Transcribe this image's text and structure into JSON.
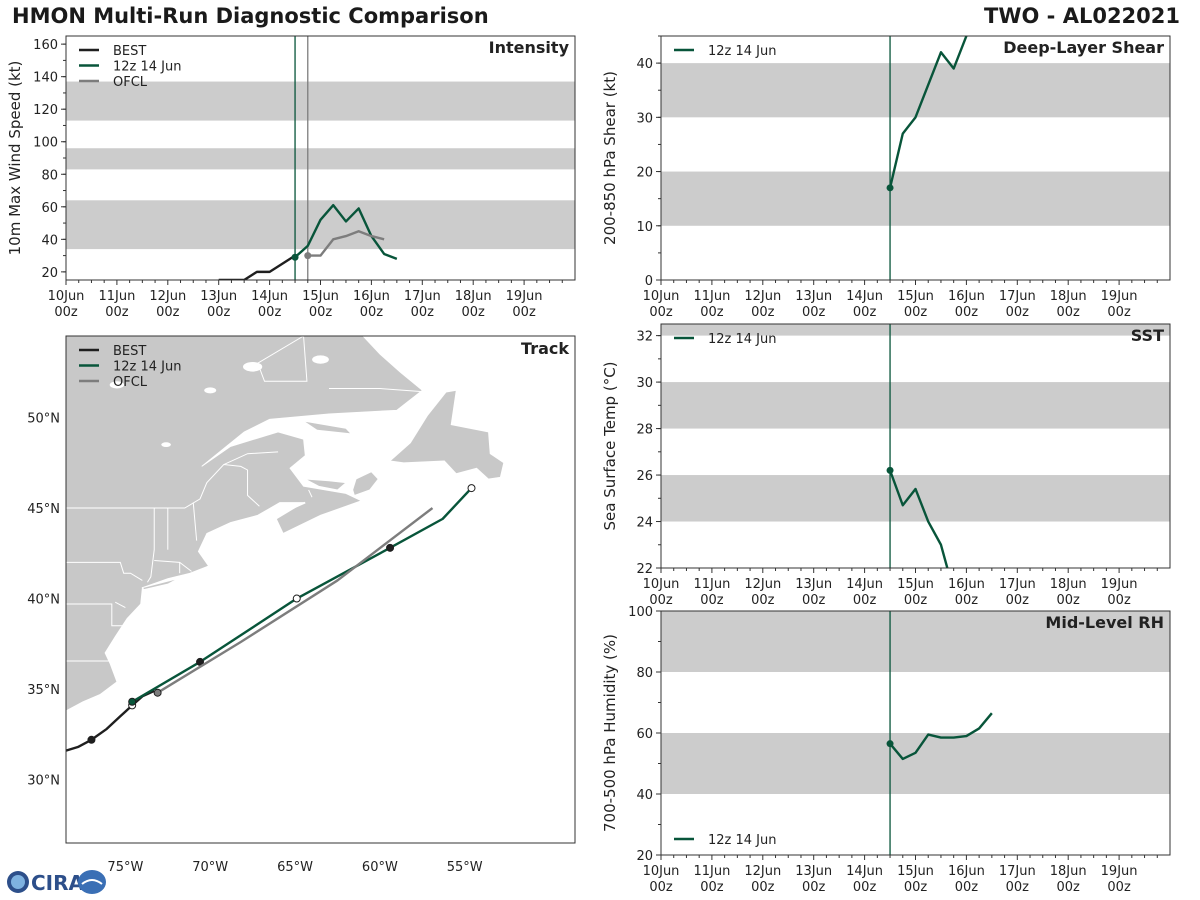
{
  "header": {
    "title": "HMON Multi-Run Diagnostic Comparison",
    "storm_id": "TWO - AL022021",
    "logo_text": "CIRA"
  },
  "colors": {
    "best": "#1f1f1f",
    "run": "#08553a",
    "ofcl": "#7d7d7d",
    "band": "#cccccc",
    "land": "#c8c8c8"
  },
  "chart_data": [
    {
      "id": "intensity",
      "type": "line",
      "title": "Intensity",
      "ylabel": "10m Max Wind Speed (kt)",
      "xlim": [
        0,
        10
      ],
      "ylim": [
        15,
        165
      ],
      "x_ticks": [
        "10Jun\n00z",
        "11Jun\n00z",
        "12Jun\n00z",
        "13Jun\n00z",
        "14Jun\n00z",
        "15Jun\n00z",
        "16Jun\n00z",
        "17Jun\n00z",
        "18Jun\n00z",
        "19Jun\n00z"
      ],
      "y_ticks": [
        20,
        40,
        60,
        80,
        100,
        120,
        140,
        160
      ],
      "bands": [
        [
          34,
          64
        ],
        [
          83,
          96
        ],
        [
          113,
          137
        ]
      ],
      "vlines": [
        {
          "x": 4.5,
          "series": "run"
        },
        {
          "x": 4.75,
          "series": "ofcl"
        }
      ],
      "legend": [
        "BEST",
        "12z 14 Jun",
        "OFCL"
      ],
      "series": [
        {
          "name": "BEST",
          "key": "best",
          "x": [
            3.0,
            3.25,
            3.5,
            3.75,
            4.0,
            4.25,
            4.5
          ],
          "y": [
            15,
            15,
            15,
            20,
            20,
            25,
            30
          ],
          "marker_at": null
        },
        {
          "name": "12z 14 Jun",
          "key": "run",
          "x": [
            4.5,
            4.75,
            5.0,
            5.25,
            5.5,
            5.75,
            6.0,
            6.25,
            6.5
          ],
          "y": [
            29,
            36,
            52,
            61,
            51,
            59,
            42,
            31,
            28
          ],
          "marker_at": 0
        },
        {
          "name": "OFCL",
          "key": "ofcl",
          "x": [
            4.75,
            5.0,
            5.25,
            5.5,
            5.75,
            6.0,
            6.25
          ],
          "y": [
            30,
            30,
            40,
            42,
            45,
            42,
            40
          ],
          "marker_at": 0
        }
      ]
    },
    {
      "id": "shear",
      "type": "line",
      "title": "Deep-Layer Shear",
      "ylabel": "200-850 hPa Shear (kt)",
      "xlim": [
        0,
        10
      ],
      "ylim": [
        0,
        45
      ],
      "x_ticks": [
        "10Jun\n00z",
        "11Jun\n00z",
        "12Jun\n00z",
        "13Jun\n00z",
        "14Jun\n00z",
        "15Jun\n00z",
        "16Jun\n00z",
        "17Jun\n00z",
        "18Jun\n00z",
        "19Jun\n00z"
      ],
      "y_ticks": [
        0,
        10,
        20,
        30,
        40
      ],
      "bands": [
        [
          10,
          20
        ],
        [
          30,
          40
        ]
      ],
      "vlines": [
        {
          "x": 4.5,
          "series": "run"
        }
      ],
      "legend": [
        "12z 14 Jun"
      ],
      "legend_pos": "top-left",
      "series": [
        {
          "name": "12z 14 Jun",
          "key": "run",
          "x": [
            4.5,
            4.75,
            5.0,
            5.25,
            5.5,
            5.75,
            6.0
          ],
          "y": [
            17,
            27,
            30,
            36,
            42,
            39,
            45
          ],
          "marker_at": 0
        }
      ]
    },
    {
      "id": "sst",
      "type": "line",
      "title": "SST",
      "ylabel": "Sea Surface Temp (°C)",
      "xlim": [
        0,
        10
      ],
      "ylim": [
        22,
        32.5
      ],
      "x_ticks": [
        "10Jun\n00z",
        "11Jun\n00z",
        "12Jun\n00z",
        "13Jun\n00z",
        "14Jun\n00z",
        "15Jun\n00z",
        "16Jun\n00z",
        "17Jun\n00z",
        "18Jun\n00z",
        "19Jun\n00z"
      ],
      "y_ticks": [
        22,
        24,
        26,
        28,
        30,
        32
      ],
      "bands": [
        [
          24,
          26
        ],
        [
          28,
          30
        ],
        [
          32,
          34
        ]
      ],
      "vlines": [
        {
          "x": 4.5,
          "series": "run"
        }
      ],
      "legend": [
        "12z 14 Jun"
      ],
      "legend_pos": "top-left",
      "series": [
        {
          "name": "12z 14 Jun",
          "key": "run",
          "x": [
            4.5,
            4.75,
            5.0,
            5.25,
            5.5,
            5.625
          ],
          "y": [
            26.2,
            24.7,
            25.4,
            24.0,
            23.0,
            22.0
          ],
          "marker_at": 0
        }
      ]
    },
    {
      "id": "rh",
      "type": "line",
      "title": "Mid-Level RH",
      "ylabel": "700-500 hPa Humidity (%)",
      "xlim": [
        0,
        10
      ],
      "ylim": [
        20,
        100
      ],
      "x_ticks": [
        "10Jun\n00z",
        "11Jun\n00z",
        "12Jun\n00z",
        "13Jun\n00z",
        "14Jun\n00z",
        "15Jun\n00z",
        "16Jun\n00z",
        "17Jun\n00z",
        "18Jun\n00z",
        "19Jun\n00z"
      ],
      "y_ticks": [
        20,
        40,
        60,
        80,
        100
      ],
      "bands": [
        [
          40,
          60
        ],
        [
          80,
          100
        ]
      ],
      "vlines": [
        {
          "x": 4.5,
          "series": "run"
        }
      ],
      "legend": [
        "12z 14 Jun"
      ],
      "legend_pos": "bottom-left",
      "series": [
        {
          "name": "12z 14 Jun",
          "key": "run",
          "x": [
            4.5,
            4.75,
            5.0,
            5.25,
            5.5,
            5.75,
            6.0,
            6.25,
            6.5
          ],
          "y": [
            56.5,
            51.5,
            53.5,
            59.5,
            58.5,
            58.5,
            59.0,
            61.5,
            66.5
          ],
          "marker_at": 0
        }
      ]
    },
    {
      "id": "track",
      "type": "line",
      "title": "Track",
      "xlim": [
        -78.5,
        -48.5
      ],
      "ylim": [
        26.5,
        54.5
      ],
      "x_ticks": [
        -75,
        -70,
        -65,
        -60,
        -55
      ],
      "x_tick_labels": [
        "75°W",
        "70°W",
        "65°W",
        "60°W",
        "55°W"
      ],
      "y_ticks": [
        30,
        35,
        40,
        45,
        50
      ],
      "y_tick_labels": [
        "30°N",
        "35°N",
        "40°N",
        "45°N",
        "50°N"
      ],
      "legend": [
        "BEST",
        "12z 14 Jun",
        "OFCL"
      ],
      "series": [
        {
          "name": "BEST",
          "key": "best",
          "lon": [
            -78.5,
            -77.8,
            -77.0,
            -76.1,
            -75.3,
            -74.6,
            -74.0,
            -73.3
          ],
          "lat": [
            31.6,
            31.8,
            32.2,
            32.8,
            33.5,
            34.1,
            34.6,
            34.9
          ],
          "markers": [
            {
              "lon": -77.0,
              "lat": 32.2,
              "fill": "best"
            },
            {
              "lon": -74.6,
              "lat": 34.1,
              "fill": "white"
            }
          ]
        },
        {
          "name": "12z 14 Jun",
          "key": "run",
          "lon": [
            -74.6,
            -70.6,
            -64.9,
            -59.4,
            -56.3,
            -54.6
          ],
          "lat": [
            34.3,
            36.5,
            40.0,
            42.8,
            44.4,
            46.1
          ],
          "markers": [
            {
              "lon": -74.6,
              "lat": 34.3,
              "fill": "run"
            },
            {
              "lon": -70.6,
              "lat": 36.5,
              "fill": "best"
            },
            {
              "lon": -64.9,
              "lat": 40.0,
              "fill": "white"
            },
            {
              "lon": -59.4,
              "lat": 42.8,
              "fill": "best"
            },
            {
              "lon": -54.6,
              "lat": 46.1,
              "fill": "white"
            }
          ]
        },
        {
          "name": "OFCL",
          "key": "ofcl",
          "lon": [
            -73.1,
            -68.2,
            -62.5,
            -56.9
          ],
          "lat": [
            34.8,
            37.6,
            41.0,
            45.0
          ],
          "markers": [
            {
              "lon": -73.1,
              "lat": 34.8,
              "fill": "ofcl"
            }
          ]
        }
      ]
    }
  ]
}
